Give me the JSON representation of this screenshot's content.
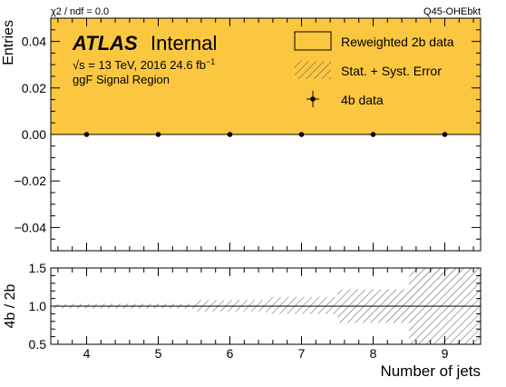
{
  "header": {
    "chi2": "χ2 / ndf = 0.0",
    "tag": "Q45-OHEbkt"
  },
  "labels": {
    "atlas": "ATLAS",
    "internal": "Internal",
    "energy_prefix": "√s = 13 TeV, 2016 24.6 fb",
    "energy_sup": "−1",
    "region": "ggF Signal Region"
  },
  "legend": {
    "reweighted": "Reweighted 2b data",
    "error": "Stat. + Syst. Error",
    "data": "4b data"
  },
  "colors": {
    "fill": "#fbc741",
    "hatch": "#555555"
  },
  "chart_data": [
    {
      "type": "bar",
      "name": "main",
      "xlim": [
        3.5,
        9.5
      ],
      "ylim": [
        -0.05,
        0.05
      ],
      "ylabel": "Entries",
      "yticks": [
        -0.04,
        -0.02,
        0.0,
        0.02,
        0.04
      ],
      "ytick_labels": [
        "−0.04",
        "−0.02",
        "0.00",
        "0.02",
        "0.04"
      ],
      "data_points": {
        "x": [
          4,
          5,
          6,
          7,
          8,
          9
        ],
        "y": [
          0,
          0,
          0,
          0,
          0,
          0
        ]
      },
      "legend_position": "top-right"
    },
    {
      "type": "bar",
      "name": "ratio",
      "xlim": [
        3.5,
        9.5
      ],
      "ylim": [
        0.5,
        1.5
      ],
      "xlabel": "Number of jets",
      "ylabel": "4b / 2b",
      "yticks": [
        0.5,
        1.0,
        1.5
      ],
      "ytick_labels": [
        "0.5",
        "1.0",
        "1.5"
      ],
      "xticks": [
        4,
        5,
        6,
        7,
        8,
        9
      ],
      "xtick_labels": [
        "4",
        "5",
        "6",
        "7",
        "8",
        "9"
      ],
      "reference_line": 1.0,
      "error_bands": [
        {
          "x_low": 3.5,
          "x_high": 4.5,
          "low": 0.97,
          "high": 1.03
        },
        {
          "x_low": 4.5,
          "x_high": 5.5,
          "low": 0.97,
          "high": 1.03
        },
        {
          "x_low": 5.5,
          "x_high": 6.5,
          "low": 0.93,
          "high": 1.08
        },
        {
          "x_low": 6.5,
          "x_high": 7.5,
          "low": 0.9,
          "high": 1.12
        },
        {
          "x_low": 7.5,
          "x_high": 8.5,
          "low": 0.78,
          "high": 1.22
        },
        {
          "x_low": 8.5,
          "x_high": 9.5,
          "low": 0.5,
          "high": 1.5
        }
      ]
    }
  ]
}
